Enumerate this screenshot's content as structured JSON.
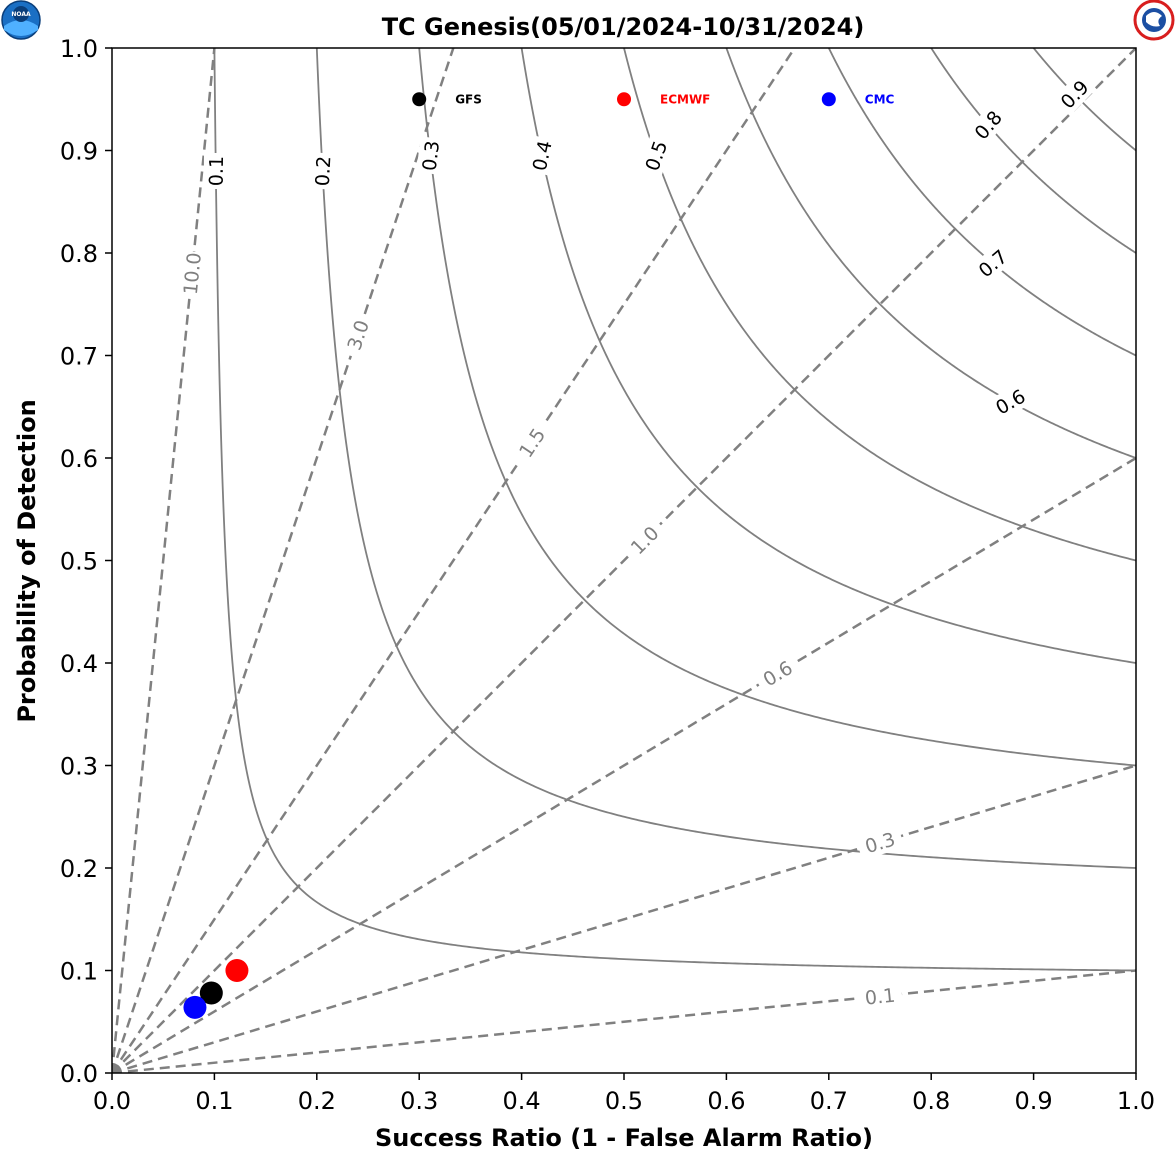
{
  "logos": {
    "left": {
      "icon": "noaa-logo",
      "text": "NOAA"
    },
    "right": {
      "icon": "national-weather-service-logo"
    }
  },
  "chart_data": {
    "type": "scatter",
    "subtype": "performance-diagram",
    "title": "TC Genesis(05/01/2024-10/31/2024)",
    "xlabel": "Success Ratio (1 - False Alarm Ratio)",
    "ylabel": "Probability of Detection",
    "xlim": [
      0,
      1
    ],
    "ylim": [
      0,
      1
    ],
    "x_ticks": [
      "0.0",
      "0.1",
      "0.2",
      "0.3",
      "0.4",
      "0.5",
      "0.6",
      "0.7",
      "0.8",
      "0.9",
      "1.0"
    ],
    "y_ticks": [
      "0.0",
      "0.1",
      "0.2",
      "0.3",
      "0.4",
      "0.5",
      "0.6",
      "0.7",
      "0.8",
      "0.9",
      "1.0"
    ],
    "csi_contours": [
      {
        "value": 0.1,
        "label": "0.1"
      },
      {
        "value": 0.2,
        "label": "0.2"
      },
      {
        "value": 0.3,
        "label": "0.3"
      },
      {
        "value": 0.4,
        "label": "0.4"
      },
      {
        "value": 0.5,
        "label": "0.5"
      },
      {
        "value": 0.6,
        "label": "0.6"
      },
      {
        "value": 0.7,
        "label": "0.7"
      },
      {
        "value": 0.8,
        "label": "0.8"
      },
      {
        "value": 0.9,
        "label": "0.9"
      }
    ],
    "bias_lines": [
      {
        "value": 0.1,
        "label": "0.1"
      },
      {
        "value": 0.3,
        "label": "0.3"
      },
      {
        "value": 0.6,
        "label": "0.6"
      },
      {
        "value": 1.0,
        "label": "1.0"
      },
      {
        "value": 1.5,
        "label": "1.5"
      },
      {
        "value": 3.0,
        "label": "3.0"
      },
      {
        "value": 10.0,
        "label": "10.0"
      }
    ],
    "series": [
      {
        "name": "GFS",
        "color": "#000000",
        "x": 0.097,
        "y": 0.078
      },
      {
        "name": "ECMWF",
        "color": "#ff0000",
        "x": 0.122,
        "y": 0.1
      },
      {
        "name": "CMC",
        "color": "#0000ff",
        "x": 0.081,
        "y": 0.064
      }
    ],
    "legend": {
      "placement": "top",
      "entries": [
        {
          "name": "GFS",
          "color": "#000000",
          "x": 0.3,
          "y": 0.95
        },
        {
          "name": "ECMWF",
          "color": "#ff0000",
          "x": 0.5,
          "y": 0.95
        },
        {
          "name": "CMC",
          "color": "#0000ff",
          "x": 0.7,
          "y": 0.95
        }
      ]
    },
    "grid": false
  }
}
